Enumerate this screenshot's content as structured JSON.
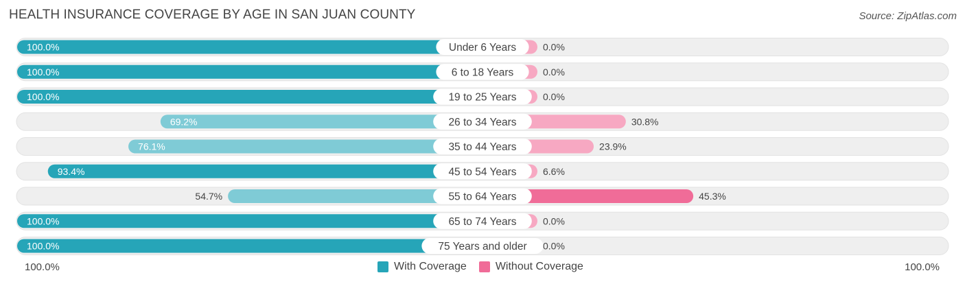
{
  "title": "HEALTH INSURANCE COVERAGE BY AGE IN SAN JUAN COUNTY",
  "source": "Source: ZipAtlas.com",
  "colors": {
    "with_strong": "#26a5b8",
    "with_light": "#7fcbd6",
    "without_strong": "#f06c98",
    "without_light": "#f7a8c2",
    "track": "#efefef"
  },
  "chart_data": {
    "type": "bar",
    "orientation": "horizontal-diverging",
    "title": "HEALTH INSURANCE COVERAGE BY AGE IN SAN JUAN COUNTY",
    "categories": [
      "Under 6 Years",
      "6 to 18 Years",
      "19 to 25 Years",
      "26 to 34 Years",
      "35 to 44 Years",
      "45 to 54 Years",
      "55 to 64 Years",
      "65 to 74 Years",
      "75 Years and older"
    ],
    "series": [
      {
        "name": "With Coverage",
        "values": [
          100.0,
          100.0,
          100.0,
          69.2,
          76.1,
          93.4,
          54.7,
          100.0,
          100.0
        ],
        "labels": [
          "100.0%",
          "100.0%",
          "100.0%",
          "69.2%",
          "76.1%",
          "93.4%",
          "54.7%",
          "100.0%",
          "100.0%"
        ]
      },
      {
        "name": "Without Coverage",
        "values": [
          0.0,
          0.0,
          0.0,
          30.8,
          23.9,
          6.6,
          45.3,
          0.0,
          0.0
        ],
        "labels": [
          "0.0%",
          "0.0%",
          "0.0%",
          "30.8%",
          "23.9%",
          "6.6%",
          "45.3%",
          "0.0%",
          "0.0%"
        ]
      }
    ],
    "xlim": [
      0,
      100
    ],
    "axis_left_label": "100.0%",
    "axis_right_label": "100.0%",
    "legend": [
      "With Coverage",
      "Without Coverage"
    ],
    "legend_position": "bottom-center"
  }
}
